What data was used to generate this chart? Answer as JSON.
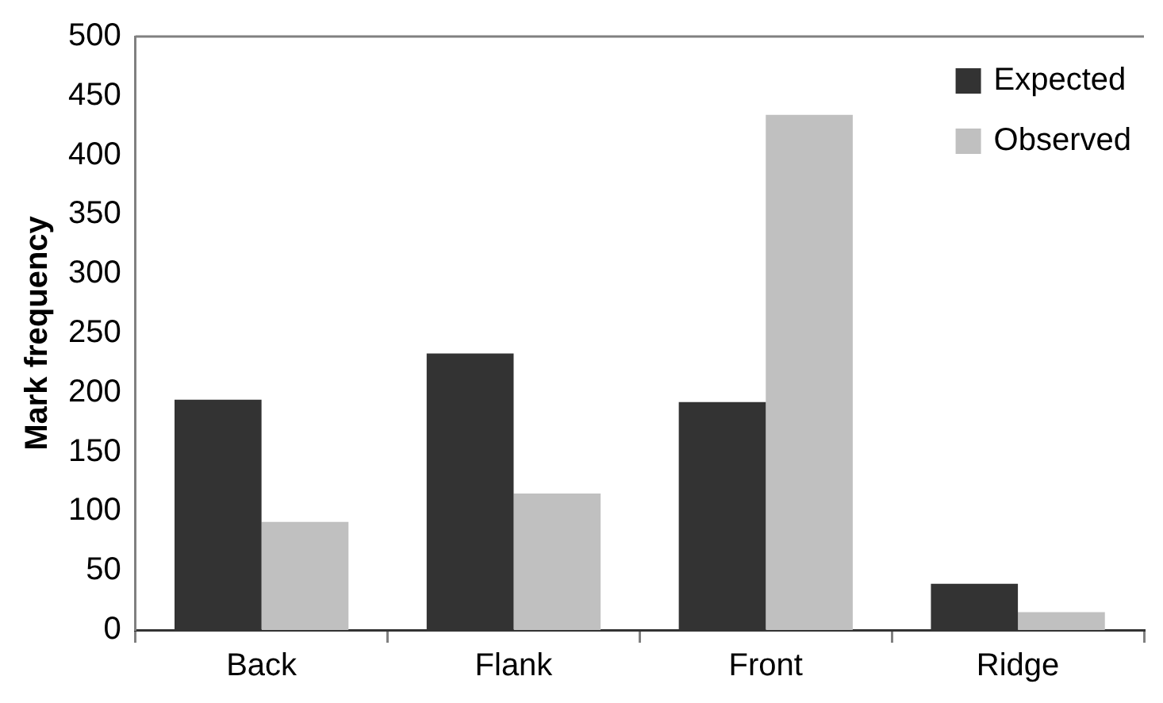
{
  "chart_data": {
    "type": "bar",
    "ylabel": "Mark frequency",
    "categories": [
      "Back",
      "Flank",
      "Front",
      "Ridge"
    ],
    "series": [
      {
        "name": "Expected",
        "color": "#333333",
        "values": [
          194,
          233,
          192,
          39
        ]
      },
      {
        "name": "Observed",
        "color": "#c0c0c0",
        "values": [
          91,
          115,
          434,
          15
        ]
      }
    ],
    "ylim": [
      0,
      500
    ],
    "yticks": [
      0,
      50,
      100,
      150,
      200,
      250,
      300,
      350,
      400,
      450,
      500
    ],
    "grid": false,
    "legend": "top right"
  }
}
